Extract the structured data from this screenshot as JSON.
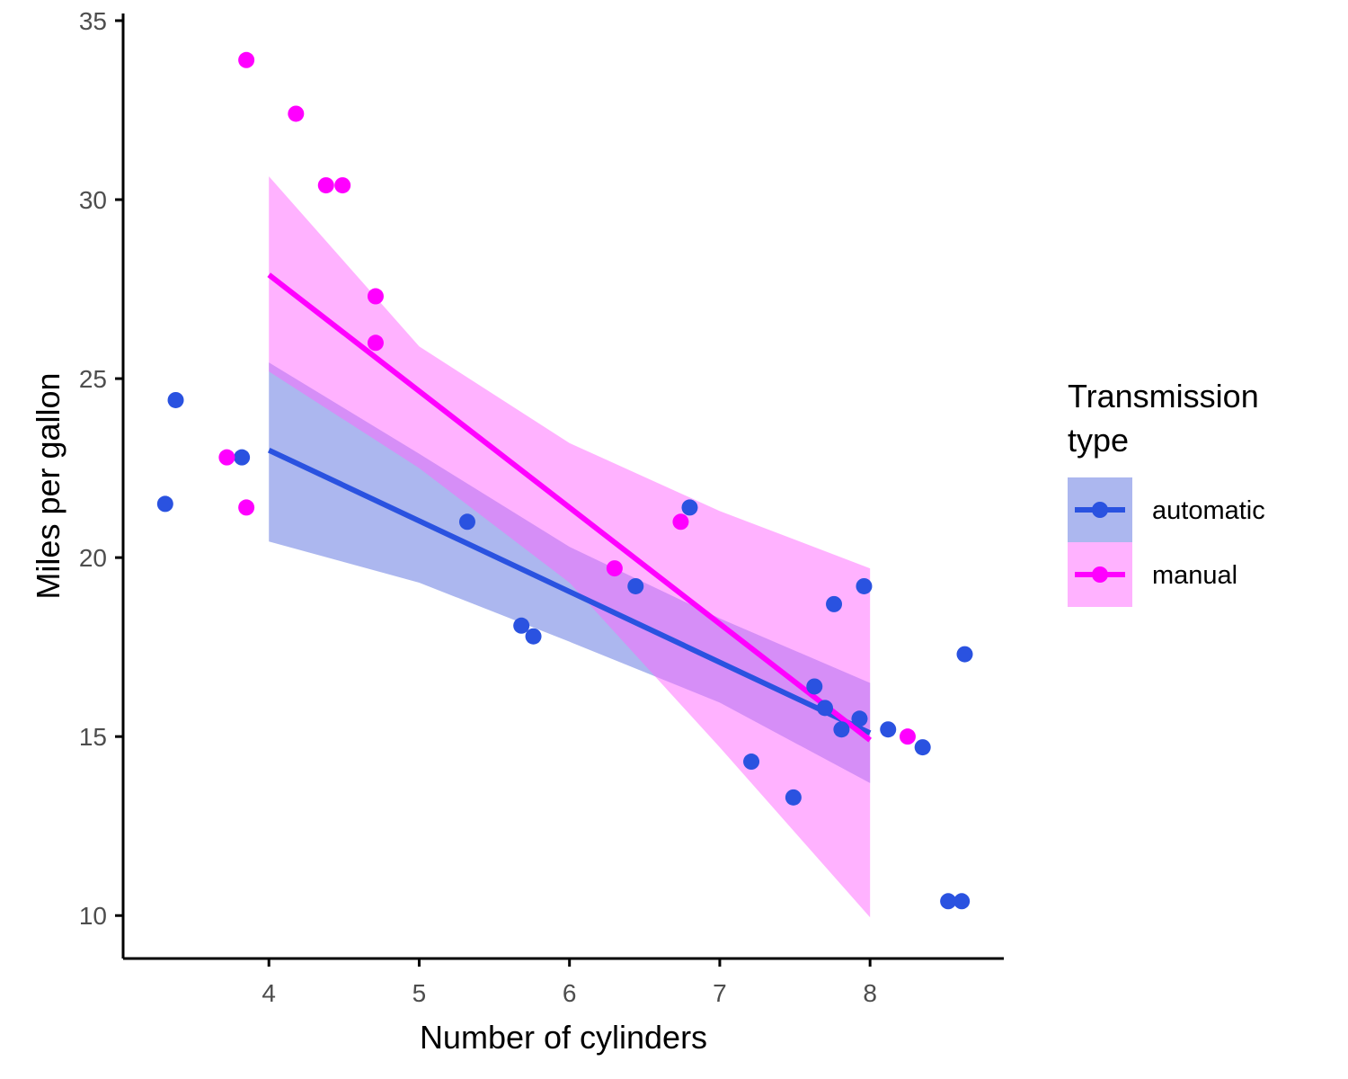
{
  "chart_data": {
    "type": "scatter",
    "xlabel": "Number of cylinders",
    "ylabel": "Miles per gallon",
    "xlim": [
      3.03,
      8.89
    ],
    "ylim": [
      8.8,
      35.2
    ],
    "x_ticks": [
      4,
      5,
      6,
      7,
      8
    ],
    "y_ticks": [
      10,
      15,
      20,
      25,
      30,
      35
    ],
    "grid": false,
    "legend": {
      "title_lines": [
        "Transmission",
        "type"
      ],
      "placement": "right"
    },
    "series": [
      {
        "name": "automatic",
        "color": "#2a52e0",
        "band_color": "#5a6fe0",
        "points": [
          {
            "x": 3.31,
            "y": 21.5
          },
          {
            "x": 3.38,
            "y": 24.4
          },
          {
            "x": 3.82,
            "y": 22.8
          },
          {
            "x": 5.68,
            "y": 18.1
          },
          {
            "x": 5.76,
            "y": 17.8
          },
          {
            "x": 5.32,
            "y": 21.0
          },
          {
            "x": 6.44,
            "y": 19.2
          },
          {
            "x": 6.8,
            "y": 21.4
          },
          {
            "x": 7.21,
            "y": 14.3
          },
          {
            "x": 7.49,
            "y": 13.3
          },
          {
            "x": 7.63,
            "y": 16.4
          },
          {
            "x": 7.7,
            "y": 15.8
          },
          {
            "x": 7.76,
            "y": 18.7
          },
          {
            "x": 7.81,
            "y": 15.2
          },
          {
            "x": 7.93,
            "y": 15.5
          },
          {
            "x": 7.96,
            "y": 19.2
          },
          {
            "x": 8.12,
            "y": 15.2
          },
          {
            "x": 8.35,
            "y": 14.7
          },
          {
            "x": 8.52,
            "y": 10.4
          },
          {
            "x": 8.61,
            "y": 10.4
          },
          {
            "x": 8.63,
            "y": 17.3
          }
        ],
        "fit": {
          "x": [
            4,
            8
          ],
          "y": [
            23.0,
            15.1
          ]
        },
        "ci": {
          "x": [
            4,
            5,
            6,
            7,
            8
          ],
          "lower": [
            20.45,
            19.3,
            17.65,
            15.95,
            13.7
          ],
          "upper": [
            25.45,
            22.9,
            20.3,
            18.3,
            16.5
          ]
        }
      },
      {
        "name": "manual",
        "color": "#ff00ff",
        "band_color": "#ff66ff",
        "points": [
          {
            "x": 3.72,
            "y": 22.8
          },
          {
            "x": 3.85,
            "y": 33.9
          },
          {
            "x": 3.85,
            "y": 21.4
          },
          {
            "x": 4.18,
            "y": 32.4
          },
          {
            "x": 4.38,
            "y": 30.4
          },
          {
            "x": 4.49,
            "y": 30.4
          },
          {
            "x": 4.71,
            "y": 27.3
          },
          {
            "x": 4.71,
            "y": 26.0
          },
          {
            "x": 6.3,
            "y": 19.7
          },
          {
            "x": 6.74,
            "y": 21.0
          },
          {
            "x": 8.25,
            "y": 15.0
          }
        ],
        "fit": {
          "x": [
            4,
            8
          ],
          "y": [
            27.9,
            14.9
          ]
        },
        "ci": {
          "x": [
            4,
            5,
            6,
            7,
            8
          ],
          "lower": [
            25.2,
            22.5,
            19.3,
            14.7,
            9.95
          ],
          "upper": [
            30.65,
            25.9,
            23.2,
            21.3,
            19.7
          ]
        }
      }
    ]
  }
}
